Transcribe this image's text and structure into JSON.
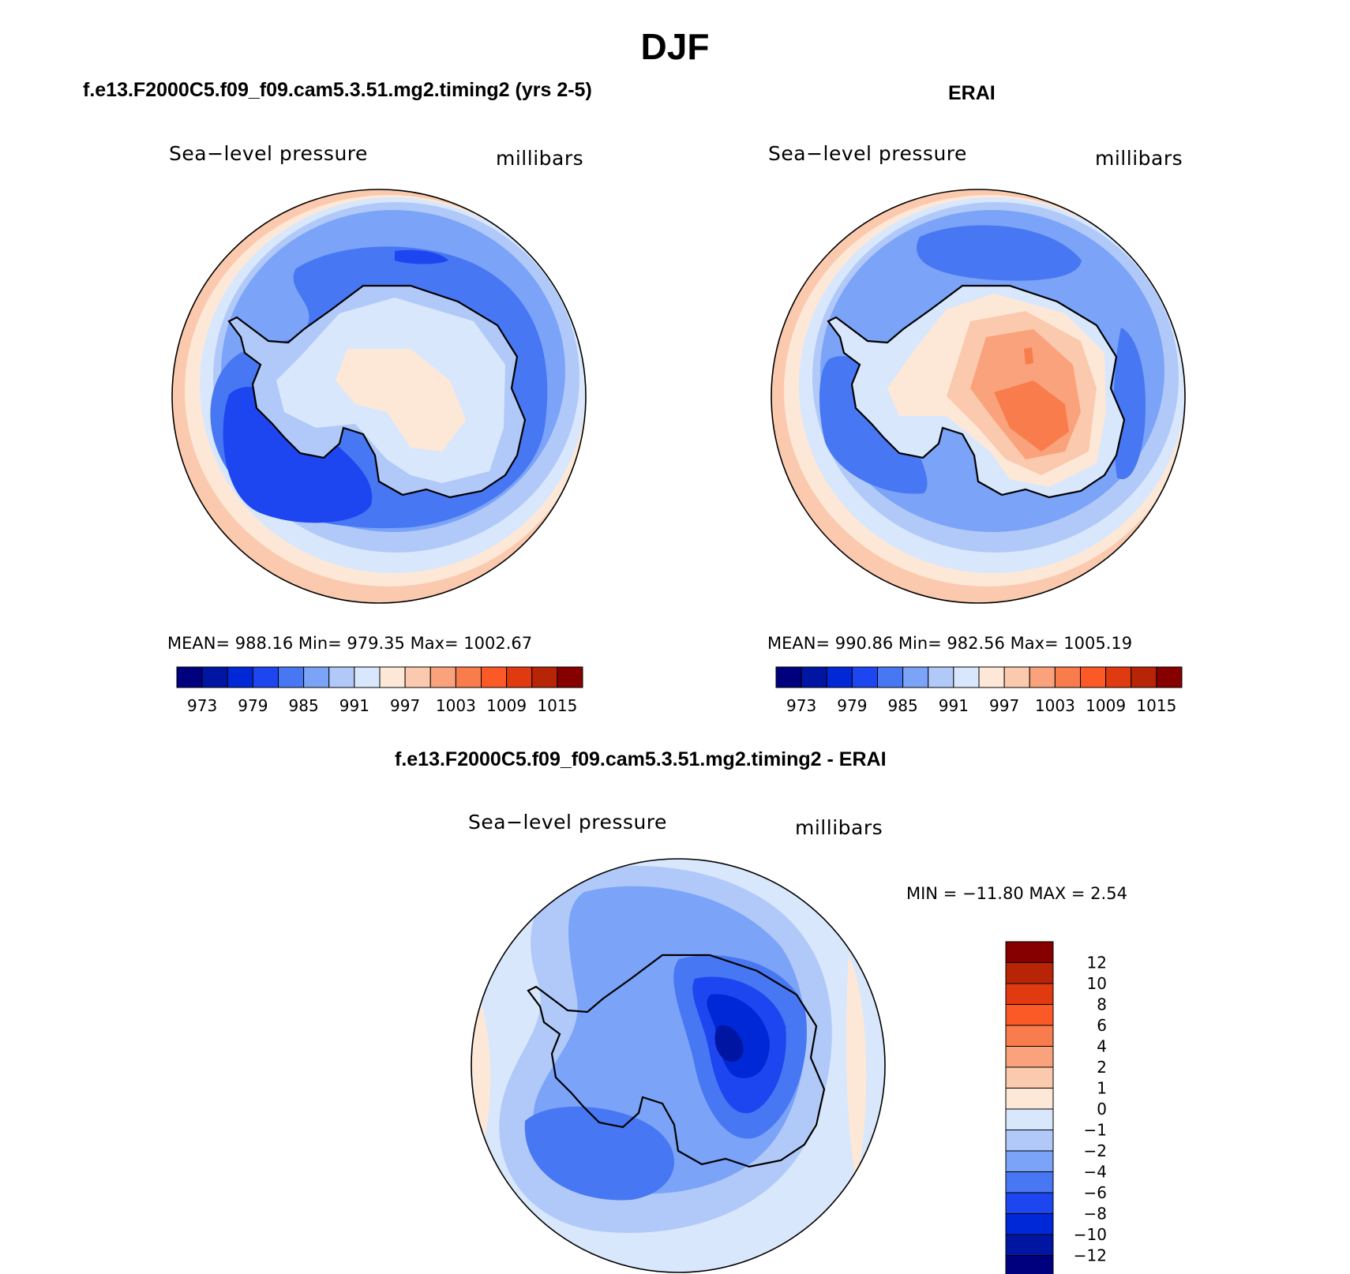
{
  "figure": {
    "season": "DJF",
    "panels": [
      {
        "title": "f.e13.F2000C5.f09_f09.cam5.3.51.mg2.timing2 (yrs 2-5)",
        "variable": "Sea−level pressure",
        "units": "millibars",
        "stats": "MEAN=  988.16   Min=  979.35   Max=  1002.67"
      },
      {
        "title": "ERAI",
        "variable": "Sea−level pressure",
        "units": "millibars",
        "stats": "MEAN=  990.86   Min=  982.56   Max=  1005.19"
      },
      {
        "title": "f.e13.F2000C5.f09_f09.cam5.3.51.mg2.timing2 - ERAI",
        "variable": "Sea−level pressure",
        "units": "millibars",
        "stats": "MIN  =  −11.80  MAX  =     2.54"
      }
    ]
  },
  "colors": {
    "palette": [
      "#00007f",
      "#0016a3",
      "#0028d6",
      "#1e46f0",
      "#4777f2",
      "#7ba3f7",
      "#b1c9f9",
      "#d8e7fb",
      "#fde8d8",
      "#fbc9ad",
      "#f9a27c",
      "#f97c4c",
      "#fb5a26",
      "#e03a10",
      "#b82506",
      "#860000"
    ],
    "land_outline": "#000000"
  },
  "chart_data": [
    {
      "type": "heatmap",
      "name": "model",
      "title": "f.e13.F2000C5.f09_f09.cam5.3.51.mg2.timing2 (yrs 2-5)",
      "variable": "Sea-level pressure",
      "units": "millibars",
      "projection": "south polar stereographic",
      "mean": 988.16,
      "min": 979.35,
      "max": 1002.67,
      "colorbar_ticks": [
        "973",
        "979",
        "985",
        "991",
        "997",
        "1003",
        "1009",
        "1015"
      ],
      "colorbar_levels": [
        973,
        976,
        979,
        982,
        985,
        988,
        991,
        994,
        997,
        1000,
        1003,
        1006,
        1009,
        1012,
        1015
      ]
    },
    {
      "type": "heatmap",
      "name": "obs",
      "title": "ERAI",
      "variable": "Sea-level pressure",
      "units": "millibars",
      "projection": "south polar stereographic",
      "mean": 990.86,
      "min": 982.56,
      "max": 1005.19,
      "colorbar_ticks": [
        "973",
        "979",
        "985",
        "991",
        "997",
        "1003",
        "1009",
        "1015"
      ],
      "colorbar_levels": [
        973,
        976,
        979,
        982,
        985,
        988,
        991,
        994,
        997,
        1000,
        1003,
        1006,
        1009,
        1012,
        1015
      ]
    },
    {
      "type": "heatmap",
      "name": "difference",
      "title": "f.e13.F2000C5.f09_f09.cam5.3.51.mg2.timing2 - ERAI",
      "variable": "Sea-level pressure",
      "units": "millibars",
      "projection": "south polar stereographic",
      "min": -11.8,
      "max": 2.54,
      "colorbar_ticks": [
        "12",
        "10",
        "8",
        "6",
        "4",
        "2",
        "1",
        "0",
        "−1",
        "−2",
        "−4",
        "−6",
        "−8",
        "−10",
        "−12"
      ],
      "colorbar_levels": [
        12,
        10,
        8,
        6,
        4,
        2,
        1,
        0,
        -1,
        -2,
        -4,
        -6,
        -8,
        -10,
        -12
      ]
    }
  ]
}
